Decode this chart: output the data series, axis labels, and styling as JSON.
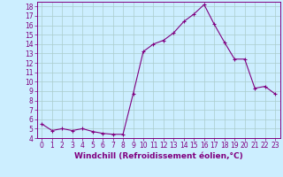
{
  "x": [
    0,
    1,
    2,
    3,
    4,
    5,
    6,
    7,
    8,
    9,
    10,
    11,
    12,
    13,
    14,
    15,
    16,
    17,
    18,
    19,
    20,
    21,
    22,
    23
  ],
  "y": [
    5.5,
    4.8,
    5.0,
    4.8,
    5.0,
    4.7,
    4.5,
    4.4,
    4.4,
    8.7,
    13.2,
    14.0,
    14.4,
    15.2,
    16.4,
    17.2,
    18.2,
    16.1,
    14.2,
    12.4,
    12.4,
    9.3,
    9.5,
    8.7
  ],
  "line_color": "#800080",
  "marker": "+",
  "marker_size": 3.5,
  "linewidth": 0.8,
  "markeredgewidth": 0.8,
  "xlim_min": -0.5,
  "xlim_max": 23.5,
  "ylim_min": 4,
  "ylim_max": 18.5,
  "yticks": [
    4,
    5,
    6,
    7,
    8,
    9,
    10,
    11,
    12,
    13,
    14,
    15,
    16,
    17,
    18
  ],
  "xticks": [
    0,
    1,
    2,
    3,
    4,
    5,
    6,
    7,
    8,
    9,
    10,
    11,
    12,
    13,
    14,
    15,
    16,
    17,
    18,
    19,
    20,
    21,
    22,
    23
  ],
  "xlabel": "Windchill (Refroidissement éolien,°C)",
  "background_color": "#cceeff",
  "grid_color": "#aacccc",
  "spine_color": "#800080",
  "tick_color": "#800080",
  "label_color": "#800080",
  "tick_fontsize": 5.5,
  "xlabel_fontsize": 6.5
}
